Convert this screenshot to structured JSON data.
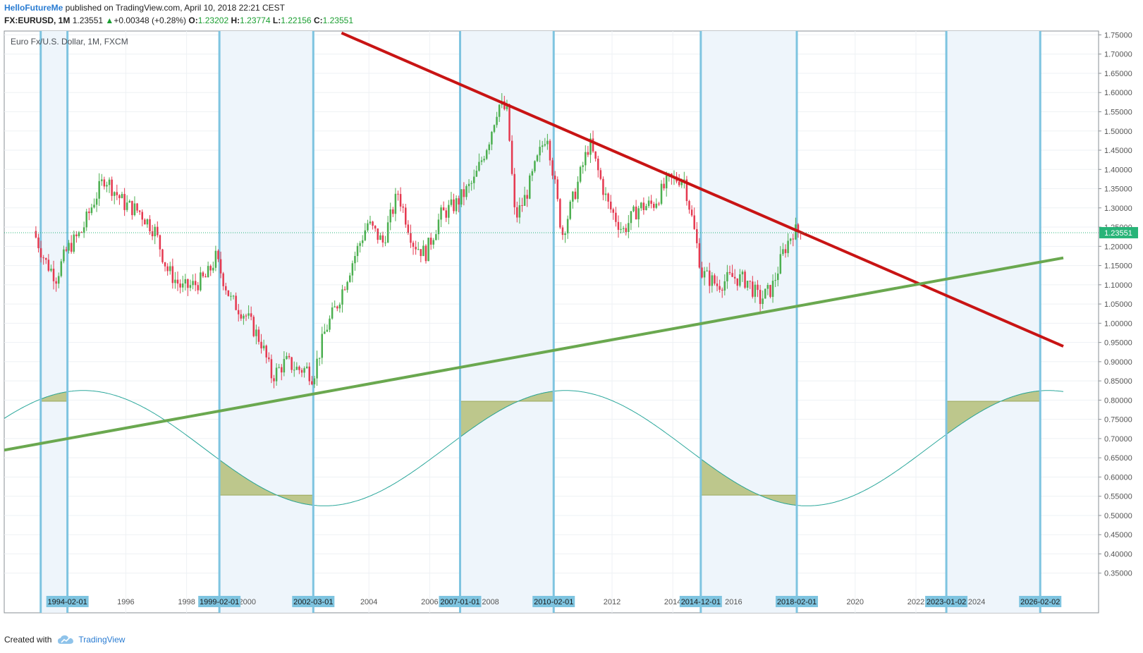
{
  "header": {
    "author": "HelloFutureMe",
    "published": " published on TradingView.com, April 10, 2018 22:21 CEST",
    "symbol": "FX:EURUSD, 1M",
    "last": "1.23551",
    "change": "+0.00348 (+0.28%)",
    "o_label": "O:",
    "o_value": "1.23202",
    "h_label": "H:",
    "h_value": "1.23774",
    "l_label": "L:",
    "l_value": "1.22156",
    "c_label": "C:",
    "c_value": "1.23551"
  },
  "footer": {
    "created_with": "Created with",
    "brand": "TradingView"
  },
  "colors": {
    "up": "#4caf50",
    "down": "#e53950",
    "cycle_line": "#7ec4e0",
    "cycle_band": "#eef5fb",
    "sine": "#2aa79b",
    "sine_fill": "#a8b45c",
    "resistance": "#c81414",
    "support": "#6aa84f",
    "price_tag": "#28b478",
    "grid": "#eef1f4",
    "date_tag": "#7ec4e0"
  },
  "chart_data": {
    "type": "candlestick",
    "title": "Euro Fx/U.S. Dollar, 1M, FXCM",
    "x_range": [
      1992.0,
      2026.85
    ],
    "y_range": [
      0.3,
      1.76
    ],
    "y_ticks": [
      "0.35000",
      "0.40000",
      "0.45000",
      "0.50000",
      "0.55000",
      "0.60000",
      "0.65000",
      "0.70000",
      "0.75000",
      "0.80000",
      "0.85000",
      "0.90000",
      "0.95000",
      "1.00000",
      "1.05000",
      "1.10000",
      "1.15000",
      "1.20000",
      "1.25000",
      "1.30000",
      "1.35000",
      "1.40000",
      "1.45000",
      "1.50000",
      "1.55000",
      "1.60000",
      "1.65000",
      "1.70000",
      "1.75000"
    ],
    "x_ticks": [
      {
        "x": 1996,
        "label": "1996"
      },
      {
        "x": 1998,
        "label": "1998"
      },
      {
        "x": 2000,
        "label": "2000"
      },
      {
        "x": 2002,
        "label": "2002"
      },
      {
        "x": 2004,
        "label": "2004"
      },
      {
        "x": 2006,
        "label": "2006"
      },
      {
        "x": 2008,
        "label": "2008"
      },
      {
        "x": 2010,
        "label": "2010"
      },
      {
        "x": 2012,
        "label": "2012"
      },
      {
        "x": 2014,
        "label": "2014"
      },
      {
        "x": 2016,
        "label": "2016"
      },
      {
        "x": 2018,
        "label": "2018"
      },
      {
        "x": 2020,
        "label": "2020"
      },
      {
        "x": 2022,
        "label": "2022"
      },
      {
        "x": 2024,
        "label": "2024"
      }
    ],
    "last_price": "1.23551",
    "price_path": [
      [
        1993.0,
        1.24
      ],
      [
        1993.4,
        1.16
      ],
      [
        1993.75,
        1.12
      ],
      [
        1994.1,
        1.19
      ],
      [
        1994.6,
        1.24
      ],
      [
        1995.0,
        1.32
      ],
      [
        1995.35,
        1.38
      ],
      [
        1995.7,
        1.34
      ],
      [
        1996.0,
        1.31
      ],
      [
        1996.5,
        1.29
      ],
      [
        1997.0,
        1.24
      ],
      [
        1997.4,
        1.14
      ],
      [
        1997.9,
        1.09
      ],
      [
        1998.3,
        1.1
      ],
      [
        1998.7,
        1.12
      ],
      [
        1999.0,
        1.17
      ],
      [
        1999.5,
        1.06
      ],
      [
        2000.0,
        1.02
      ],
      [
        2000.5,
        0.95
      ],
      [
        2000.85,
        0.86
      ],
      [
        2001.3,
        0.9
      ],
      [
        2001.7,
        0.88
      ],
      [
        2002.0,
        0.88
      ],
      [
        2002.2,
        0.86
      ],
      [
        2002.6,
        0.98
      ],
      [
        2003.0,
        1.05
      ],
      [
        2003.5,
        1.16
      ],
      [
        2004.0,
        1.26
      ],
      [
        2004.5,
        1.21
      ],
      [
        2005.0,
        1.34
      ],
      [
        2005.5,
        1.21
      ],
      [
        2005.9,
        1.18
      ],
      [
        2006.4,
        1.28
      ],
      [
        2006.9,
        1.31
      ],
      [
        2007.5,
        1.37
      ],
      [
        2008.0,
        1.48
      ],
      [
        2008.3,
        1.57
      ],
      [
        2008.6,
        1.55
      ],
      [
        2008.85,
        1.27
      ],
      [
        2009.2,
        1.33
      ],
      [
        2009.9,
        1.5
      ],
      [
        2010.4,
        1.23
      ],
      [
        2010.9,
        1.36
      ],
      [
        2011.3,
        1.47
      ],
      [
        2011.9,
        1.31
      ],
      [
        2012.4,
        1.24
      ],
      [
        2012.9,
        1.3
      ],
      [
        2013.4,
        1.31
      ],
      [
        2013.9,
        1.37
      ],
      [
        2014.4,
        1.38
      ],
      [
        2014.7,
        1.26
      ],
      [
        2015.0,
        1.13
      ],
      [
        2015.5,
        1.1
      ],
      [
        2016.0,
        1.12
      ],
      [
        2016.5,
        1.11
      ],
      [
        2016.9,
        1.06
      ],
      [
        2017.3,
        1.09
      ],
      [
        2017.7,
        1.19
      ],
      [
        2018.0,
        1.24
      ],
      [
        2018.27,
        1.2355
      ]
    ],
    "cycle_dates": [
      {
        "x": 1993.2,
        "label": ""
      },
      {
        "x": 1994.08,
        "label": "1994-02-01"
      },
      {
        "x": 1999.08,
        "label": "1999-02-01"
      },
      {
        "x": 2002.17,
        "label": "2002-03-01"
      },
      {
        "x": 2007.0,
        "label": "2007-01-01"
      },
      {
        "x": 2010.08,
        "label": "2010-02-01"
      },
      {
        "x": 2014.92,
        "label": "2014-12-01"
      },
      {
        "x": 2018.08,
        "label": "2018-02-01"
      },
      {
        "x": 2023.0,
        "label": "2023-01-02"
      },
      {
        "x": 2026.09,
        "label": "2026-02-02"
      }
    ],
    "resistance_line": [
      [
        2003.1,
        1.755
      ],
      [
        2026.85,
        0.94
      ]
    ],
    "support_line": [
      [
        1992.0,
        0.67
      ],
      [
        2026.85,
        1.17
      ]
    ],
    "sine": {
      "center": 0.675,
      "amplitude": 0.15,
      "period": 15.88,
      "phase_peak": 1994.6,
      "fill_upper": 0.797,
      "fill_lower": 0.553
    }
  }
}
